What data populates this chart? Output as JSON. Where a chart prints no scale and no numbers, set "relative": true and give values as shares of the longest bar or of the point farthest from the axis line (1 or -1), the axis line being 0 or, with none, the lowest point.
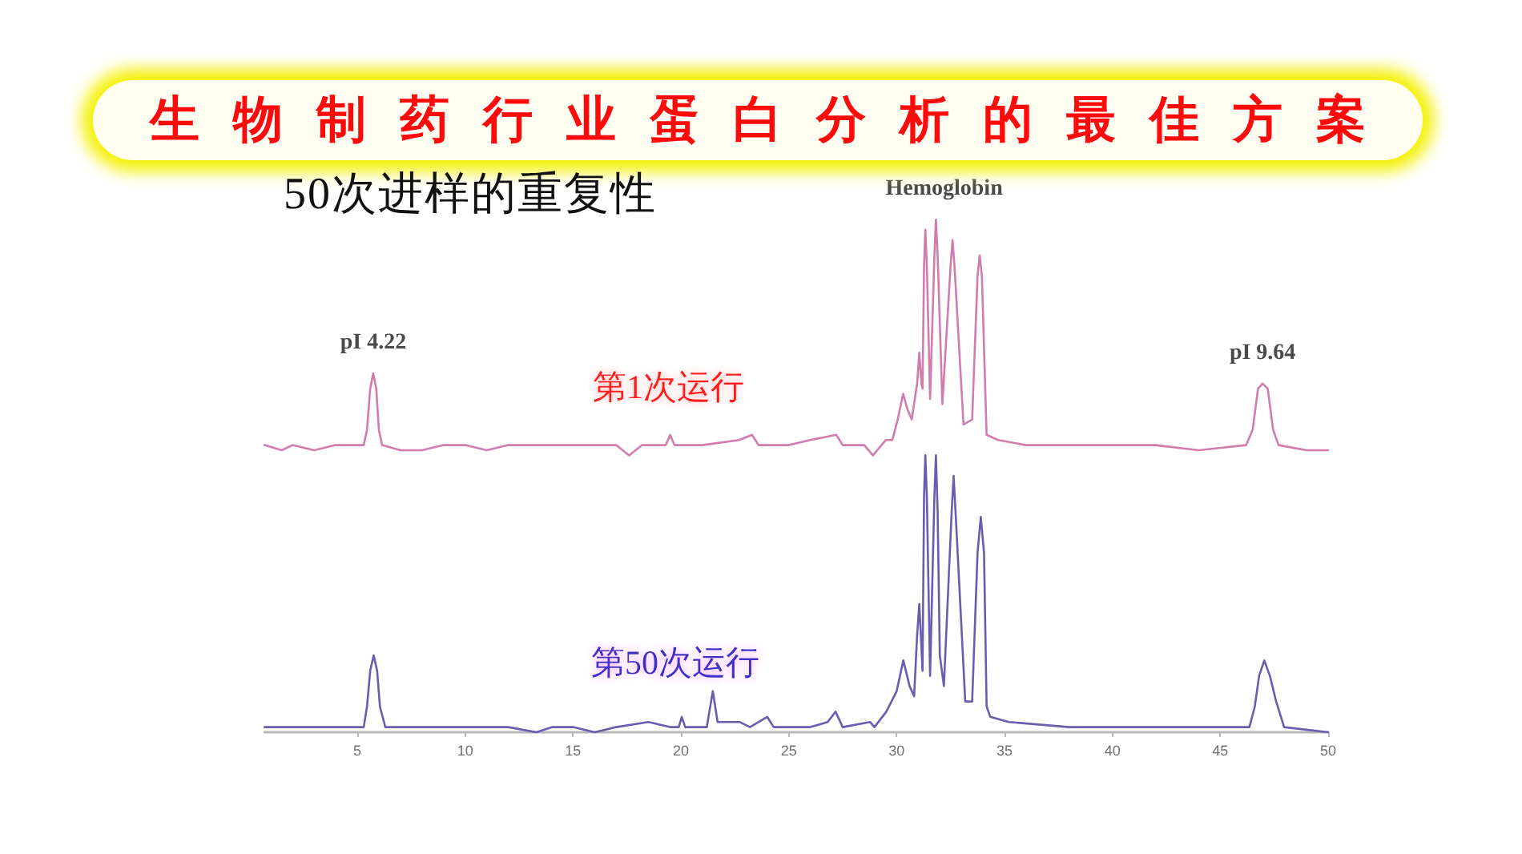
{
  "chart_data": {
    "type": "line",
    "title": "生物制药行业蛋白分析的最佳方案",
    "subtitle": "50次进样的重复性",
    "relative": true,
    "marker": "none",
    "xlim": [
      0.7,
      50
    ],
    "xticks": [
      5,
      10,
      15,
      20,
      25,
      30,
      35,
      40,
      45,
      50
    ],
    "annotations": [
      {
        "text": "pI 4.22",
        "x": 5.74,
        "y": 0.7
      },
      {
        "text": "Hemoglobin",
        "x": 32.2,
        "y": 1
      },
      {
        "text": "pI 9.64",
        "x": 46.96,
        "y": 0.68
      }
    ],
    "series": [
      {
        "name": "第1次运行",
        "color": "#d27cad",
        "x": [
          0.7,
          1.5,
          2,
          3,
          4,
          5.3,
          5.45,
          5.6,
          5.74,
          5.88,
          6.0,
          6.15,
          7,
          8,
          9,
          10,
          11,
          12,
          13,
          14,
          15,
          16,
          17,
          17.6,
          18.2,
          18.5,
          19.3,
          19.5,
          19.7,
          21,
          22.7,
          23.3,
          23.6,
          25,
          26,
          27.2,
          27.5,
          28.5,
          28.9,
          29.5,
          29.8,
          30.05,
          30.3,
          30.5,
          30.7,
          30.95,
          31.05,
          31.15,
          31.2,
          31.27,
          31.33,
          31.4,
          31.55,
          31.75,
          31.82,
          31.9,
          32.12,
          32.5,
          32.59,
          32.68,
          33.1,
          33.5,
          33.75,
          33.85,
          33.95,
          34.17,
          34.7,
          36,
          37,
          38,
          40,
          42,
          44,
          46.2,
          46.5,
          46.75,
          46.96,
          47.2,
          47.45,
          47.7,
          49,
          50
        ],
        "values": [
          0.56,
          0.55,
          0.56,
          0.55,
          0.56,
          0.56,
          0.59,
          0.67,
          0.7,
          0.67,
          0.59,
          0.56,
          0.55,
          0.55,
          0.56,
          0.56,
          0.55,
          0.56,
          0.56,
          0.56,
          0.56,
          0.56,
          0.56,
          0.54,
          0.56,
          0.56,
          0.56,
          0.58,
          0.56,
          0.56,
          0.57,
          0.58,
          0.56,
          0.56,
          0.57,
          0.58,
          0.56,
          0.56,
          0.54,
          0.57,
          0.57,
          0.61,
          0.66,
          0.63,
          0.61,
          0.68,
          0.74,
          0.68,
          0.67,
          0.91,
          0.98,
          0.91,
          0.65,
          0.93,
          1,
          0.93,
          0.64,
          0.91,
          0.96,
          0.91,
          0.6,
          0.61,
          0.89,
          0.93,
          0.89,
          0.58,
          0.57,
          0.56,
          0.56,
          0.56,
          0.56,
          0.56,
          0.55,
          0.56,
          0.59,
          0.67,
          0.68,
          0.67,
          0.59,
          0.56,
          0.55,
          0.55
        ]
      },
      {
        "name": "第50次运行",
        "color": "#6c5cb0",
        "x": [
          0.7,
          2,
          3.5,
          4,
          5.3,
          5.45,
          5.6,
          5.76,
          5.92,
          6.05,
          6.3,
          8,
          10,
          12,
          13.3,
          14.05,
          15,
          16,
          17,
          18.5,
          19.5,
          19.9,
          20.04,
          20.2,
          21.2,
          21.48,
          21.7,
          22.5,
          22.72,
          23.2,
          24.0,
          24.3,
          26,
          26.8,
          27.17,
          27.5,
          28.77,
          28.97,
          29.52,
          30.0,
          30.31,
          30.6,
          30.81,
          30.95,
          31.05,
          31.12,
          31.2,
          31.27,
          31.33,
          31.4,
          31.55,
          31.75,
          31.82,
          31.9,
          32.0,
          32.19,
          32.55,
          32.64,
          32.73,
          33.18,
          33.5,
          33.75,
          33.9,
          34.05,
          34.17,
          34.34,
          35.2,
          38,
          40.16,
          43,
          44.55,
          46.35,
          46.6,
          46.8,
          47.04,
          47.3,
          47.59,
          47.96,
          50
        ],
        "values": [
          0.01,
          0.01,
          0.01,
          0.01,
          0.01,
          0.05,
          0.12,
          0.15,
          0.12,
          0.05,
          0.01,
          0.01,
          0.01,
          0.01,
          0,
          0.01,
          0.01,
          0,
          0.01,
          0.02,
          0.01,
          0.01,
          0.03,
          0.01,
          0.01,
          0.08,
          0.02,
          0.02,
          0.02,
          0.01,
          0.03,
          0.01,
          0.01,
          0.02,
          0.04,
          0.01,
          0.02,
          0.01,
          0.04,
          0.08,
          0.14,
          0.09,
          0.07,
          0.19,
          0.25,
          0.19,
          0.12,
          0.46,
          0.54,
          0.46,
          0.11,
          0.46,
          0.54,
          0.43,
          0.15,
          0.09,
          0.43,
          0.5,
          0.43,
          0.06,
          0.06,
          0.35,
          0.42,
          0.35,
          0.05,
          0.03,
          0.02,
          0.01,
          0.01,
          0.01,
          0.01,
          0.01,
          0.05,
          0.11,
          0.14,
          0.11,
          0.06,
          0.01,
          0
        ]
      }
    ]
  }
}
